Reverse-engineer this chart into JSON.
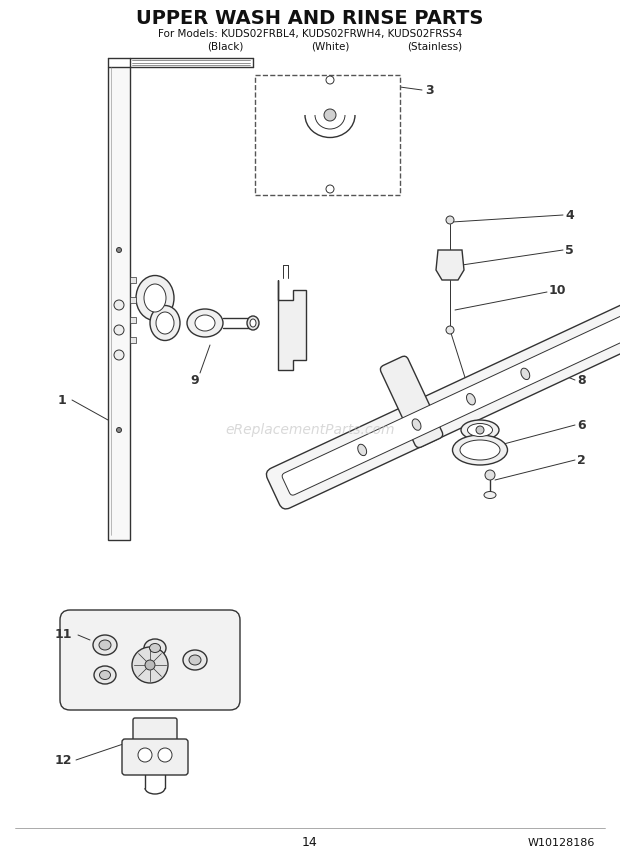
{
  "title": "UPPER WASH AND RINSE PARTS",
  "subtitle_line1": "For Models: KUDS02FRBL4, KUDS02FRWH4, KUDS02FRSS4",
  "subtitle_line2_col1": "(Black)",
  "subtitle_line2_col2": "(White)",
  "subtitle_line2_col3": "(Stainless)",
  "page_number": "14",
  "part_number": "W10128186",
  "watermark": "eReplacementParts.com",
  "bg_color": "#ffffff",
  "line_color": "#333333",
  "label_color": "#111111"
}
